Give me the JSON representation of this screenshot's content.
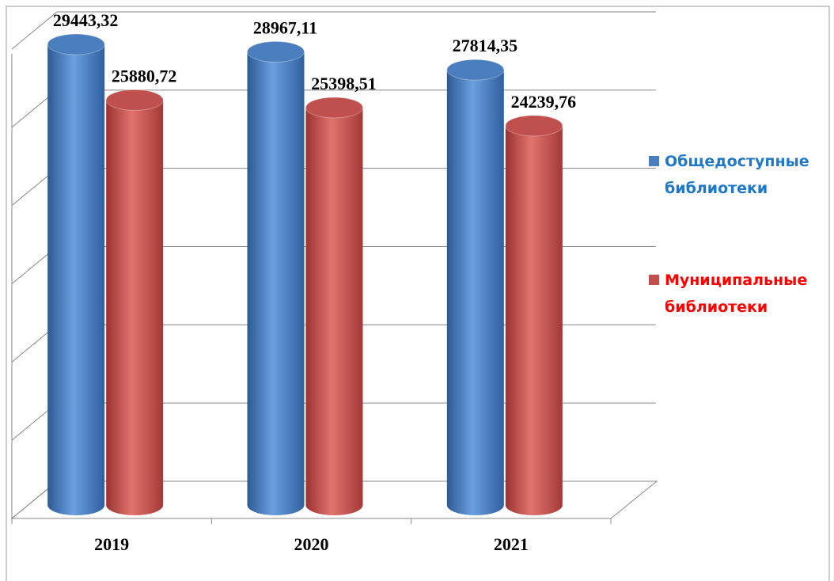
{
  "chart_data": {
    "type": "bar3d",
    "categories": [
      "2019",
      "2020",
      "2021"
    ],
    "series": [
      {
        "name": "Общедоступные библиотеки",
        "color": "#4a7ebf",
        "values": [
          29443.32,
          28967.11,
          27814.35
        ],
        "value_labels": [
          "29443,32",
          "28967,11",
          "27814,35"
        ]
      },
      {
        "name": "Муниципальные библиотеки",
        "color": "#c0504d",
        "values": [
          25880.72,
          25398.51,
          24239.76
        ],
        "value_labels": [
          "25880,72",
          "25398,51",
          "24239,76"
        ]
      }
    ],
    "ylim": [
      0,
      30000
    ],
    "yticks": [
      0,
      5000,
      10000,
      15000,
      20000,
      25000,
      30000
    ],
    "grid": true,
    "legend": "right"
  }
}
